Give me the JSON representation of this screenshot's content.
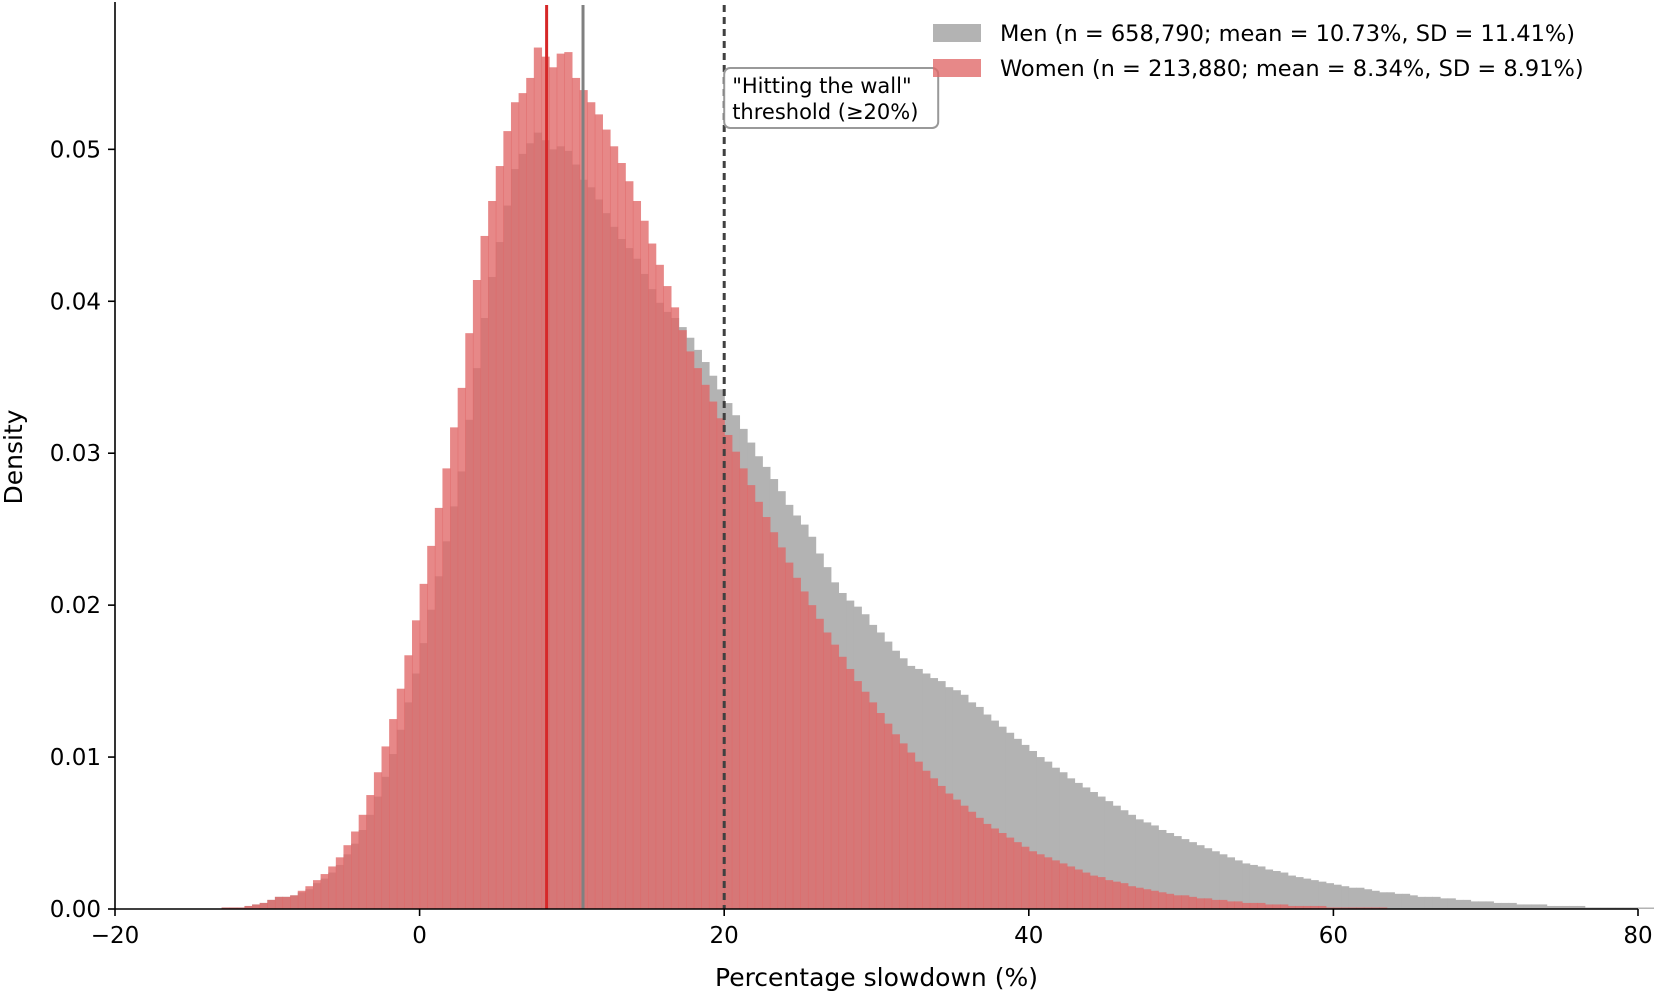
{
  "chart_data": {
    "type": "histogram",
    "title": "",
    "xlabel": "Percentage slowdown (%)",
    "ylabel": "Density",
    "xlim": [
      -20,
      80
    ],
    "ylim": [
      0,
      0.0595
    ],
    "xticks": [
      -20,
      0,
      20,
      40,
      60,
      80
    ],
    "xtick_labels": [
      "−20",
      "0",
      "20",
      "40",
      "60",
      "80"
    ],
    "yticks": [
      0,
      0.01,
      0.02,
      0.03,
      0.04,
      0.05
    ],
    "ytick_labels": [
      "0.00",
      "0.01",
      "0.02",
      "0.03",
      "0.04",
      "0.05"
    ],
    "bin_start": -20,
    "bin_width": 0.5,
    "series": [
      {
        "name": "Men (n = 658,790; mean = 10.73%, SD = 11.41%)",
        "color": "#b3b3b3",
        "mean": 10.73,
        "mean_line_color": "#808080",
        "values": [
          0,
          0,
          0,
          0,
          0,
          0,
          0,
          0,
          0,
          0,
          0,
          0,
          0,
          0,
          0.0001,
          0.0001,
          0.0001,
          0.0002,
          0.0003,
          0.0004,
          0.0006,
          0.0008,
          0.0008,
          0.0009,
          0.0011,
          0.0013,
          0.0017,
          0.002,
          0.0024,
          0.0029,
          0.0036,
          0.0043,
          0.0052,
          0.0062,
          0.0074,
          0.0087,
          0.0102,
          0.0118,
          0.0136,
          0.0155,
          0.0175,
          0.0197,
          0.0219,
          0.0242,
          0.0265,
          0.0288,
          0.0322,
          0.0356,
          0.0389,
          0.0416,
          0.0439,
          0.0463,
          0.0487,
          0.0497,
          0.0504,
          0.0511,
          0.0506,
          0.05,
          0.0502,
          0.0499,
          0.049,
          0.048,
          0.0475,
          0.0467,
          0.0458,
          0.0449,
          0.0441,
          0.0435,
          0.0428,
          0.0418,
          0.0408,
          0.0399,
          0.0393,
          0.0389,
          0.0383,
          0.0376,
          0.0368,
          0.036,
          0.0351,
          0.0342,
          0.0333,
          0.0325,
          0.0316,
          0.0307,
          0.0298,
          0.0291,
          0.0283,
          0.0275,
          0.0266,
          0.0259,
          0.0253,
          0.0245,
          0.0234,
          0.0225,
          0.0215,
          0.0208,
          0.0203,
          0.0199,
          0.0194,
          0.0187,
          0.0182,
          0.0176,
          0.017,
          0.0165,
          0.016,
          0.0158,
          0.0155,
          0.0152,
          0.015,
          0.0146,
          0.0144,
          0.0141,
          0.0136,
          0.0133,
          0.0128,
          0.0124,
          0.012,
          0.0116,
          0.0112,
          0.0108,
          0.0104,
          0.01,
          0.0097,
          0.0093,
          0.009,
          0.0086,
          0.0083,
          0.008,
          0.0077,
          0.0074,
          0.0071,
          0.0068,
          0.0065,
          0.0062,
          0.0059,
          0.0057,
          0.0055,
          0.0052,
          0.005,
          0.0048,
          0.0046,
          0.0044,
          0.0042,
          0.004,
          0.0038,
          0.0036,
          0.0034,
          0.0032,
          0.003,
          0.0029,
          0.0028,
          0.0026,
          0.0025,
          0.0024,
          0.0022,
          0.0021,
          0.002,
          0.0019,
          0.0018,
          0.0017,
          0.0016,
          0.0015,
          0.0014,
          0.0014,
          0.0013,
          0.0012,
          0.0011,
          0.0011,
          0.001,
          0.001,
          0.0009,
          0.0008,
          0.0008,
          0.0008,
          0.0007,
          0.0007,
          0.0006,
          0.0006,
          0.0005,
          0.0005,
          0.0005,
          0.0004,
          0.0004,
          0.0004,
          0.0003,
          0.0003,
          0.0003,
          0.0003,
          0.0002,
          0.0002,
          0.0002,
          0.0002,
          0.0002,
          0.0001,
          0.0001,
          0.0001,
          0.0001,
          0.0001,
          0.0001,
          0.0001,
          0.0001,
          0.0001,
          0.0001,
          0,
          0,
          0,
          0,
          0,
          0,
          0,
          0,
          0,
          0,
          0,
          0,
          0,
          0,
          0,
          0,
          0,
          0,
          0,
          0,
          0,
          0,
          0,
          0,
          0,
          0,
          0,
          0,
          0,
          0,
          0,
          0,
          0,
          0,
          0,
          0,
          0,
          0,
          0,
          0,
          0,
          0
        ]
      },
      {
        "name": "Women (n = 213,880; mean = 8.34%, SD = 8.91%)",
        "color": "#e06666",
        "opacity": 0.78,
        "mean": 8.34,
        "mean_line_color": "#d62728",
        "values": [
          0,
          0,
          0,
          0,
          0,
          0,
          0,
          0,
          0,
          0,
          0,
          0,
          0,
          0,
          0.0001,
          0.0001,
          0.0001,
          0.0002,
          0.0003,
          0.0004,
          0.0006,
          0.0008,
          0.0008,
          0.0009,
          0.0012,
          0.0015,
          0.0019,
          0.0023,
          0.0028,
          0.0034,
          0.0042,
          0.0051,
          0.0062,
          0.0075,
          0.009,
          0.0107,
          0.0125,
          0.0145,
          0.0167,
          0.019,
          0.0214,
          0.0239,
          0.0264,
          0.029,
          0.0317,
          0.0343,
          0.0379,
          0.0414,
          0.0443,
          0.0466,
          0.0489,
          0.0512,
          0.0531,
          0.0537,
          0.0547,
          0.0567,
          0.0561,
          0.0554,
          0.0563,
          0.0564,
          0.0547,
          0.0539,
          0.0531,
          0.0523,
          0.0513,
          0.0502,
          0.0491,
          0.0479,
          0.0466,
          0.0453,
          0.0438,
          0.0424,
          0.041,
          0.0396,
          0.0381,
          0.0367,
          0.0356,
          0.0345,
          0.0334,
          0.0323,
          0.0312,
          0.0301,
          0.029,
          0.0279,
          0.0268,
          0.0258,
          0.0248,
          0.0238,
          0.0228,
          0.0218,
          0.0209,
          0.02,
          0.0191,
          0.0182,
          0.0174,
          0.0166,
          0.0158,
          0.015,
          0.0143,
          0.0136,
          0.0129,
          0.0122,
          0.0115,
          0.0109,
          0.0103,
          0.0097,
          0.0091,
          0.0086,
          0.0081,
          0.0076,
          0.0072,
          0.0068,
          0.0064,
          0.006,
          0.0056,
          0.0053,
          0.005,
          0.0047,
          0.0044,
          0.0041,
          0.0038,
          0.0036,
          0.0034,
          0.0032,
          0.003,
          0.0028,
          0.0026,
          0.0024,
          0.0022,
          0.0021,
          0.0019,
          0.0018,
          0.0017,
          0.0015,
          0.0014,
          0.0013,
          0.0012,
          0.0011,
          0.001,
          0.0009,
          0.0009,
          0.0008,
          0.0007,
          0.0007,
          0.0006,
          0.0006,
          0.0005,
          0.0005,
          0.0004,
          0.0004,
          0.0004,
          0.0003,
          0.0003,
          0.0003,
          0.0002,
          0.0002,
          0.0002,
          0.0002,
          0.0002,
          0.0001,
          0.0001,
          0.0001,
          0.0001,
          0.0001,
          0.0001,
          0.0001,
          0.0001,
          0,
          0,
          0,
          0,
          0,
          0,
          0,
          0,
          0,
          0,
          0,
          0,
          0,
          0,
          0,
          0,
          0,
          0,
          0,
          0,
          0,
          0,
          0,
          0,
          0,
          0,
          0,
          0,
          0,
          0,
          0,
          0,
          0,
          0,
          0,
          0,
          0,
          0,
          0,
          0,
          0,
          0,
          0,
          0,
          0,
          0,
          0,
          0,
          0,
          0,
          0,
          0,
          0,
          0,
          0,
          0,
          0,
          0,
          0,
          0,
          0,
          0,
          0,
          0,
          0,
          0,
          0,
          0,
          0,
          0,
          0,
          0,
          0,
          0,
          0,
          0,
          0,
          0,
          0,
          0,
          0,
          0,
          0,
          0,
          0,
          0,
          0,
          0,
          0,
          0,
          0,
          0,
          0,
          0,
          0,
          0,
          0
        ]
      }
    ],
    "threshold": {
      "x": 20,
      "line_color": "#404040",
      "label_line1": "\"Hitting the wall\"",
      "label_line2": "threshold (≥20%)"
    },
    "legend": {
      "location": "upper-right"
    },
    "grid": false
  }
}
